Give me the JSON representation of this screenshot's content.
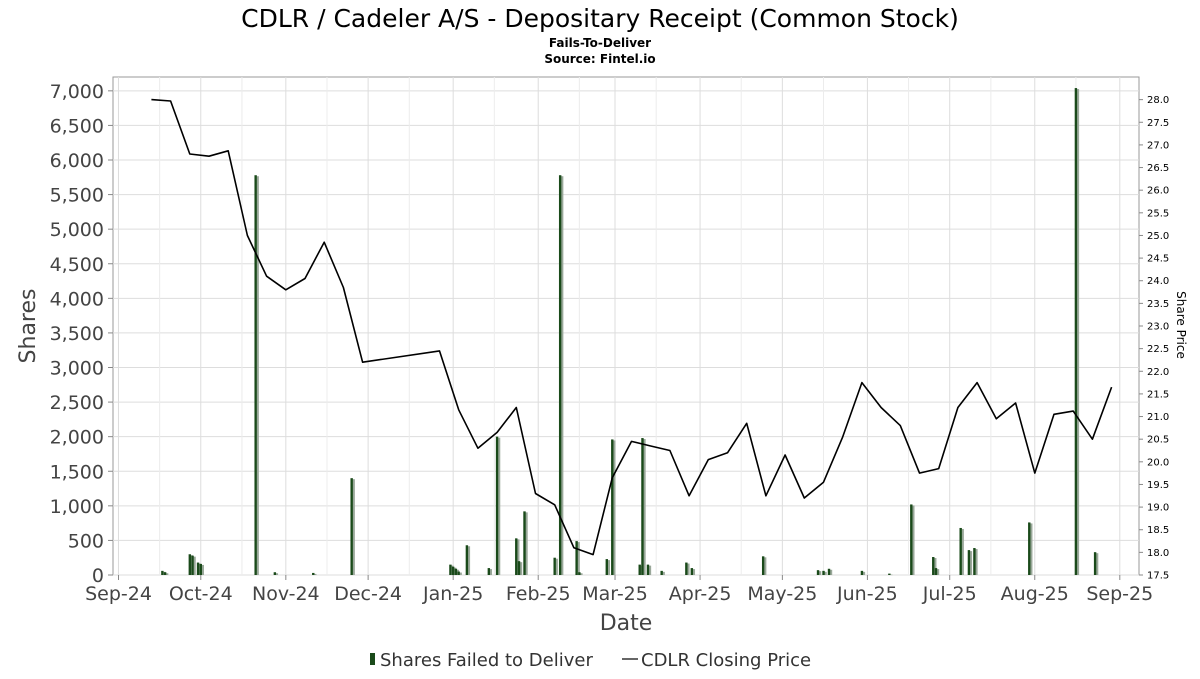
{
  "chart_data": {
    "type": "bar+line",
    "title": "CDLR / Cadeler A/S - Depositary Receipt (Common Stock)",
    "subtitle": "Fails-To-Deliver",
    "source": "Source: Fintel.io",
    "xlabel": "Date",
    "ylabel": "Shares",
    "y2label": "Share Price",
    "x_ticks": [
      "Sep-24",
      "Oct-24",
      "Nov-24",
      "Dec-24",
      "Jan-25",
      "Feb-25",
      "Mar-25",
      "Apr-25",
      "May-25",
      "Jun-25",
      "Jul-25",
      "Aug-25",
      "Sep-25"
    ],
    "x_tick_dates": [
      "2024-09-01",
      "2024-10-01",
      "2024-11-01",
      "2024-12-01",
      "2025-01-01",
      "2025-02-01",
      "2025-03-01",
      "2025-04-01",
      "2025-05-01",
      "2025-06-01",
      "2025-07-01",
      "2025-08-01",
      "2025-09-01"
    ],
    "xlim": [
      "2024-08-30",
      "2025-09-08"
    ],
    "ylim": [
      0,
      7200
    ],
    "yticks": [
      0,
      500,
      1000,
      1500,
      2000,
      2500,
      3000,
      3500,
      4000,
      4500,
      5000,
      5500,
      6000,
      6500,
      7000
    ],
    "ytick_labels": [
      "0",
      "500",
      "1,000",
      "1,500",
      "2,000",
      "2,500",
      "3,000",
      "3,500",
      "4,000",
      "4,500",
      "5,000",
      "5,500",
      "6,000",
      "6,500",
      "7,000"
    ],
    "y2lim": [
      17.5,
      28.5
    ],
    "y2ticks": [
      17.5,
      18.0,
      18.5,
      19.0,
      19.5,
      20.0,
      20.5,
      21.0,
      21.5,
      22.0,
      22.5,
      23.0,
      23.5,
      24.0,
      24.5,
      25.0,
      25.5,
      26.0,
      26.5,
      27.0,
      27.5,
      28.0
    ],
    "y2tick_labels": [
      "17.5",
      "18.0",
      "18.5",
      "19.0",
      "19.5",
      "20.0",
      "20.5",
      "21.0",
      "21.5",
      "22.0",
      "22.5",
      "23.0",
      "23.5",
      "24.0",
      "24.5",
      "25.0",
      "25.5",
      "26.0",
      "26.5",
      "27.0",
      "27.5",
      "28.0"
    ],
    "grid": true,
    "legend_position": "bottom-center",
    "series": [
      {
        "name": "Shares Failed to Deliver",
        "type": "bar",
        "color": "#1a4a1a",
        "shadow_color": "#9aa89a",
        "points": [
          {
            "x": "2024-09-17",
            "y": 60
          },
          {
            "x": "2024-09-18",
            "y": 40
          },
          {
            "x": "2024-09-27",
            "y": 300
          },
          {
            "x": "2024-09-28",
            "y": 280
          },
          {
            "x": "2024-09-30",
            "y": 180
          },
          {
            "x": "2024-10-01",
            "y": 160
          },
          {
            "x": "2024-10-21",
            "y": 5780
          },
          {
            "x": "2024-10-28",
            "y": 40
          },
          {
            "x": "2024-11-11",
            "y": 30
          },
          {
            "x": "2024-11-25",
            "y": 1400
          },
          {
            "x": "2024-12-31",
            "y": 150
          },
          {
            "x": "2025-01-01",
            "y": 120
          },
          {
            "x": "2025-01-02",
            "y": 90
          },
          {
            "x": "2025-01-03",
            "y": 50
          },
          {
            "x": "2025-01-06",
            "y": 430
          },
          {
            "x": "2025-01-14",
            "y": 100
          },
          {
            "x": "2025-01-17",
            "y": 2000
          },
          {
            "x": "2025-01-24",
            "y": 530
          },
          {
            "x": "2025-01-25",
            "y": 200
          },
          {
            "x": "2025-01-27",
            "y": 920
          },
          {
            "x": "2025-02-07",
            "y": 250
          },
          {
            "x": "2025-02-09",
            "y": 5780
          },
          {
            "x": "2025-02-15",
            "y": 490
          },
          {
            "x": "2025-02-16",
            "y": 40
          },
          {
            "x": "2025-02-26",
            "y": 230
          },
          {
            "x": "2025-02-28",
            "y": 1960
          },
          {
            "x": "2025-03-10",
            "y": 150
          },
          {
            "x": "2025-03-11",
            "y": 1980
          },
          {
            "x": "2025-03-13",
            "y": 150
          },
          {
            "x": "2025-03-18",
            "y": 60
          },
          {
            "x": "2025-03-27",
            "y": 180
          },
          {
            "x": "2025-03-29",
            "y": 100
          },
          {
            "x": "2025-04-24",
            "y": 270
          },
          {
            "x": "2025-05-14",
            "y": 70
          },
          {
            "x": "2025-05-16",
            "y": 60
          },
          {
            "x": "2025-05-18",
            "y": 90
          },
          {
            "x": "2025-05-30",
            "y": 60
          },
          {
            "x": "2025-06-09",
            "y": 20
          },
          {
            "x": "2025-06-17",
            "y": 1020
          },
          {
            "x": "2025-06-25",
            "y": 260
          },
          {
            "x": "2025-06-26",
            "y": 100
          },
          {
            "x": "2025-07-05",
            "y": 680
          },
          {
            "x": "2025-07-08",
            "y": 360
          },
          {
            "x": "2025-07-10",
            "y": 390
          },
          {
            "x": "2025-07-30",
            "y": 760
          },
          {
            "x": "2025-08-16",
            "y": 7040
          },
          {
            "x": "2025-08-23",
            "y": 330
          }
        ]
      },
      {
        "name": "CDLR Closing Price",
        "type": "line",
        "axis": "right",
        "color": "#000000",
        "points": [
          {
            "x": "2024-09-13",
            "y": 28.0
          },
          {
            "x": "2024-09-20",
            "y": 27.97
          },
          {
            "x": "2024-09-27",
            "y": 26.8
          },
          {
            "x": "2024-10-04",
            "y": 26.75
          },
          {
            "x": "2024-10-11",
            "y": 26.87
          },
          {
            "x": "2024-10-18",
            "y": 25.0
          },
          {
            "x": "2024-10-25",
            "y": 24.1
          },
          {
            "x": "2024-11-01",
            "y": 23.8
          },
          {
            "x": "2024-11-08",
            "y": 24.05
          },
          {
            "x": "2024-11-15",
            "y": 24.85
          },
          {
            "x": "2024-11-22",
            "y": 23.85
          },
          {
            "x": "2024-11-29",
            "y": 22.2
          },
          {
            "x": "2024-12-27",
            "y": 22.45
          },
          {
            "x": "2025-01-03",
            "y": 21.15
          },
          {
            "x": "2025-01-10",
            "y": 20.3
          },
          {
            "x": "2025-01-17",
            "y": 20.65
          },
          {
            "x": "2025-01-24",
            "y": 21.2
          },
          {
            "x": "2025-01-31",
            "y": 19.3
          },
          {
            "x": "2025-02-07",
            "y": 19.05
          },
          {
            "x": "2025-02-14",
            "y": 18.1
          },
          {
            "x": "2025-02-21",
            "y": 17.95
          },
          {
            "x": "2025-02-28",
            "y": 19.65
          },
          {
            "x": "2025-03-07",
            "y": 20.45
          },
          {
            "x": "2025-03-14",
            "y": 20.35
          },
          {
            "x": "2025-03-21",
            "y": 20.25
          },
          {
            "x": "2025-03-28",
            "y": 19.25
          },
          {
            "x": "2025-04-04",
            "y": 20.05
          },
          {
            "x": "2025-04-11",
            "y": 20.2
          },
          {
            "x": "2025-04-18",
            "y": 20.85
          },
          {
            "x": "2025-04-25",
            "y": 19.25
          },
          {
            "x": "2025-05-02",
            "y": 20.15
          },
          {
            "x": "2025-05-09",
            "y": 19.2
          },
          {
            "x": "2025-05-16",
            "y": 19.55
          },
          {
            "x": "2025-05-23",
            "y": 20.55
          },
          {
            "x": "2025-05-30",
            "y": 21.75
          },
          {
            "x": "2025-06-06",
            "y": 21.2
          },
          {
            "x": "2025-06-13",
            "y": 20.8
          },
          {
            "x": "2025-06-20",
            "y": 19.75
          },
          {
            "x": "2025-06-27",
            "y": 19.85
          },
          {
            "x": "2025-07-04",
            "y": 21.2
          },
          {
            "x": "2025-07-11",
            "y": 21.75
          },
          {
            "x": "2025-07-18",
            "y": 20.95
          },
          {
            "x": "2025-07-25",
            "y": 21.3
          },
          {
            "x": "2025-08-01",
            "y": 19.75
          },
          {
            "x": "2025-08-08",
            "y": 21.05
          },
          {
            "x": "2025-08-15",
            "y": 21.12
          },
          {
            "x": "2025-08-22",
            "y": 20.5
          },
          {
            "x": "2025-08-29",
            "y": 21.65
          }
        ]
      }
    ]
  }
}
